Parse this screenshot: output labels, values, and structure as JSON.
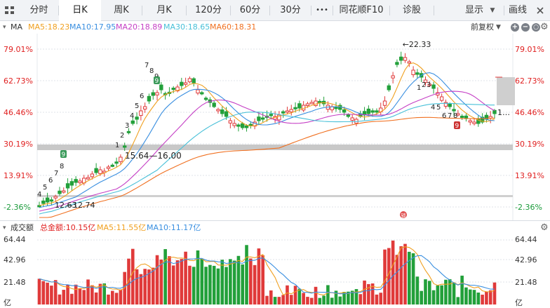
{
  "toolbar": {
    "back_icon": "grid-menu-icon",
    "tabs": [
      "分时",
      "日K",
      "周K",
      "月K",
      "120分",
      "60分",
      "30分"
    ],
    "more_label": "•••",
    "tabs_right": [
      "同花顺F10",
      "诊股"
    ],
    "display_label": "显示",
    "draw_label": "画线"
  },
  "main_legend": {
    "label": "MA",
    "ma5": "MA5:18.23",
    "ma10": "MA10:17.95",
    "ma20": "MA20:18.89",
    "ma30": "MA30:18.65",
    "ma60": "MA60:18.31",
    "adjust_label": "前复权",
    "colors": {
      "ma5": "#f0a020",
      "ma10": "#3a8fe0",
      "ma20": "#c53fc5",
      "ma30": "#48c0d8",
      "ma60": "#f07020"
    }
  },
  "price_axis": {
    "labels": [
      "79.01%",
      "62.73%",
      "46.46%",
      "30.19%",
      "13.91%",
      "-2.36%"
    ],
    "colors": [
      "#e02020",
      "#e02020",
      "#e02020",
      "#e02020",
      "#e02020",
      "#1a9a3a"
    ]
  },
  "annotations": {
    "high": "22.33",
    "low": "12.74",
    "low_left": "12.63",
    "box_range": "15.64—16.00",
    "last_tag": "1…",
    "seq_top": [
      "7",
      "8",
      "9"
    ],
    "seq_left": [
      "1",
      "2",
      "3",
      "4",
      "5",
      "6"
    ],
    "seq_start": [
      "4",
      "5",
      "6",
      "7",
      "8"
    ],
    "seq_right_top": [
      "1",
      "2",
      "3"
    ],
    "seq_right_bottom": [
      "4",
      "5",
      "6",
      "7",
      "8"
    ],
    "badge_9": "9",
    "badge_bottom_9": "9",
    "badge_lock": "锁"
  },
  "volume_legend": {
    "label": "成交额",
    "total": "总金额:10.15亿",
    "ma5": "MA5:11.55亿",
    "ma10": "MA10:11.17亿"
  },
  "volume_axis": {
    "labels": [
      "64.44",
      "42.96",
      "21.48",
      "亿"
    ]
  },
  "colors": {
    "up": "#e03a3a",
    "down": "#22a03a",
    "grid": "#dfe3e8",
    "highlight_band": "#c8c8c8"
  }
}
